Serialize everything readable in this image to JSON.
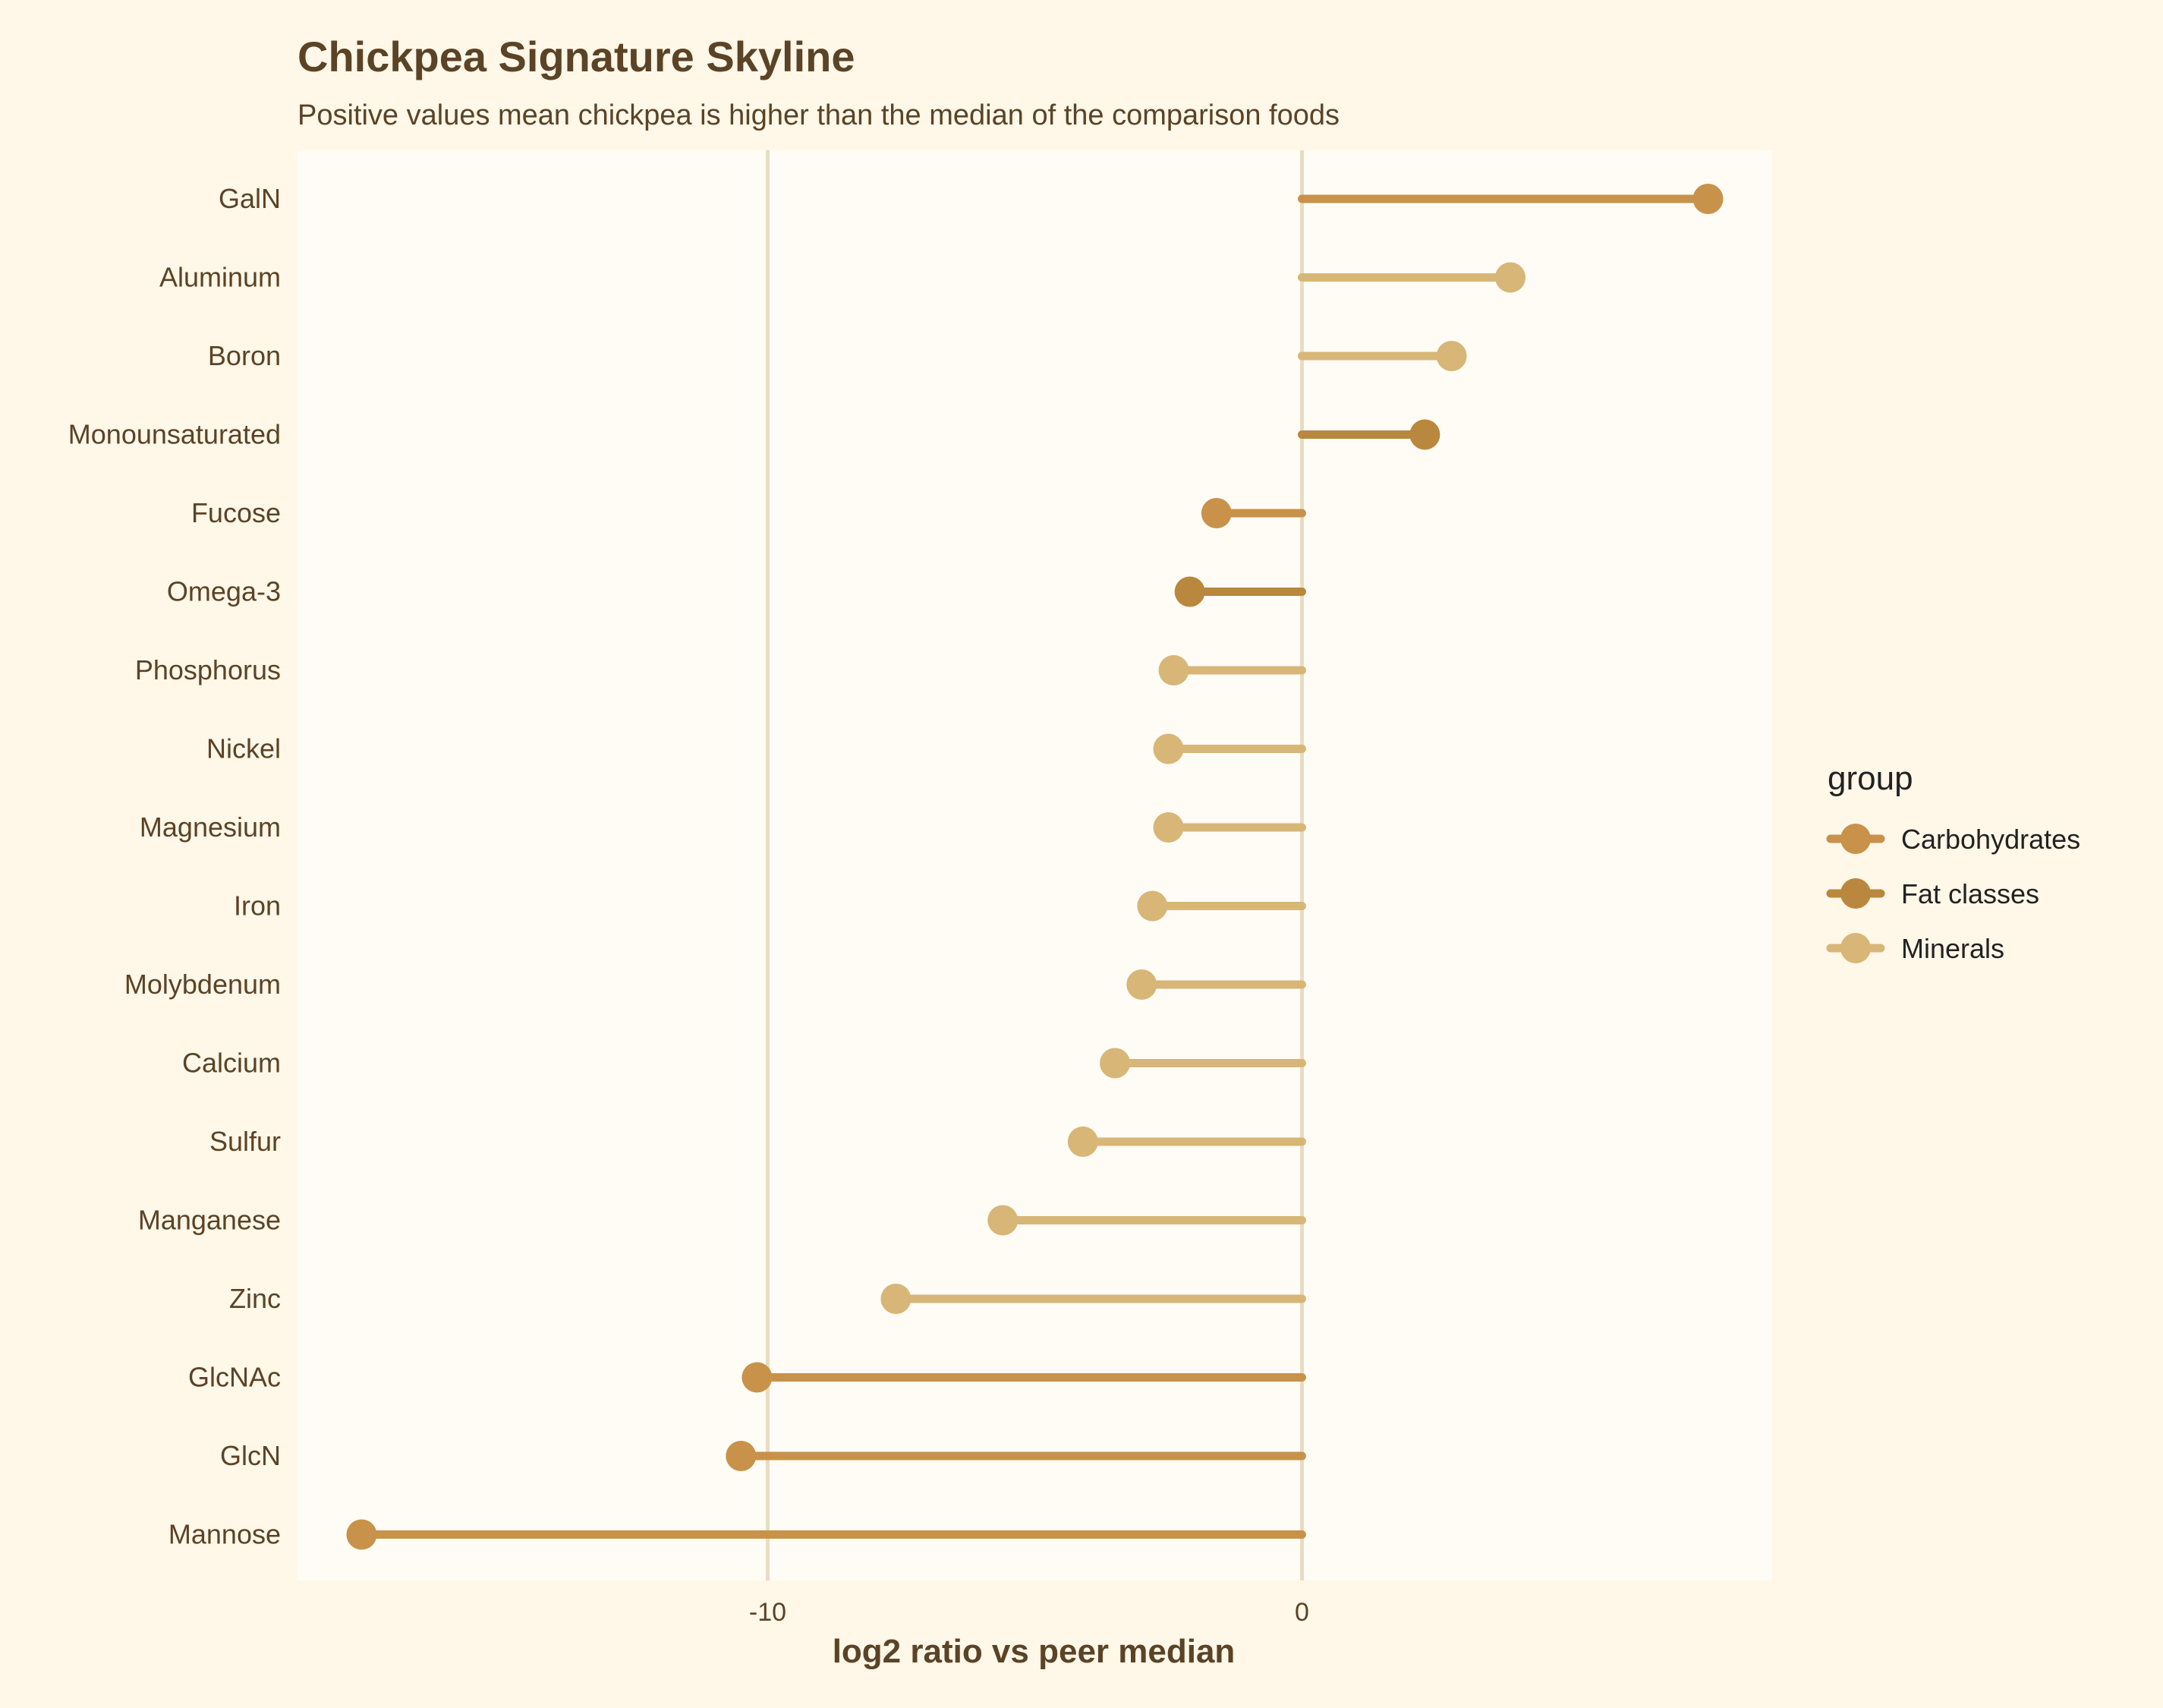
{
  "chart_data": {
    "type": "lollipop",
    "title": "Chickpea Signature Skyline",
    "subtitle": "Positive values mean chickpea is higher than the median of the comparison foods",
    "xlabel": "log2 ratio vs peer median",
    "ylabel": "",
    "xlim": [
      -18.8,
      8.8
    ],
    "xticks": [
      -10,
      0
    ],
    "grid": true,
    "legend": {
      "title": "group",
      "placement": "right",
      "entries": [
        {
          "name": "Carbohydrates",
          "color": "#c8924a"
        },
        {
          "name": "Fat classes",
          "color": "#b9873d"
        },
        {
          "name": "Minerals",
          "color": "#d7b677"
        }
      ]
    },
    "points": [
      {
        "label": "GalN",
        "value": 7.6,
        "group": "Carbohydrates"
      },
      {
        "label": "Aluminum",
        "value": 3.9,
        "group": "Minerals"
      },
      {
        "label": "Boron",
        "value": 2.8,
        "group": "Minerals"
      },
      {
        "label": "Monounsaturated",
        "value": 2.3,
        "group": "Fat classes"
      },
      {
        "label": "Fucose",
        "value": -1.6,
        "group": "Carbohydrates"
      },
      {
        "label": "Omega-3",
        "value": -2.1,
        "group": "Fat classes"
      },
      {
        "label": "Phosphorus",
        "value": -2.4,
        "group": "Minerals"
      },
      {
        "label": "Nickel",
        "value": -2.5,
        "group": "Minerals"
      },
      {
        "label": "Magnesium",
        "value": -2.5,
        "group": "Minerals"
      },
      {
        "label": "Iron",
        "value": -2.8,
        "group": "Minerals"
      },
      {
        "label": "Molybdenum",
        "value": -3.0,
        "group": "Minerals"
      },
      {
        "label": "Calcium",
        "value": -3.5,
        "group": "Minerals"
      },
      {
        "label": "Sulfur",
        "value": -4.1,
        "group": "Minerals"
      },
      {
        "label": "Manganese",
        "value": -5.6,
        "group": "Minerals"
      },
      {
        "label": "Zinc",
        "value": -7.6,
        "group": "Minerals"
      },
      {
        "label": "GlcNAc",
        "value": -10.2,
        "group": "Carbohydrates"
      },
      {
        "label": "GlcN",
        "value": -10.5,
        "group": "Carbohydrates"
      },
      {
        "label": "Mannose",
        "value": -17.6,
        "group": "Carbohydrates"
      }
    ]
  }
}
